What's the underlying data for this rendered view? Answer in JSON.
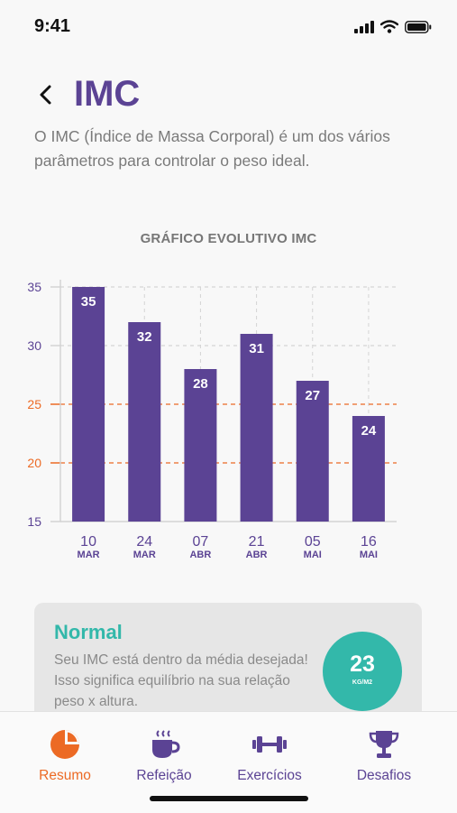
{
  "status_bar": {
    "time": "9:41"
  },
  "header": {
    "title": "IMC",
    "description": "O IMC (Índice de Massa Corporal) é um dos vários parâmetros para controlar o peso ideal."
  },
  "chart_data": {
    "type": "bar",
    "title": "GRÁFICO EVOLUTIVO IMC",
    "categories": [
      {
        "day": "10",
        "month": "MAR"
      },
      {
        "day": "24",
        "month": "MAR"
      },
      {
        "day": "07",
        "month": "ABR"
      },
      {
        "day": "21",
        "month": "ABR"
      },
      {
        "day": "05",
        "month": "MAI"
      },
      {
        "day": "16",
        "month": "MAI"
      }
    ],
    "values": [
      35,
      32,
      28,
      31,
      27,
      24
    ],
    "data_labels": [
      "35",
      "32",
      "28",
      "31",
      "27",
      "24"
    ],
    "ylim": [
      15,
      35
    ],
    "yticks": [
      15,
      20,
      25,
      30,
      35
    ],
    "yticklabels": [
      "15",
      "20",
      "25",
      "30",
      "35"
    ],
    "reference_lines": [
      20,
      25
    ],
    "grid": true,
    "colors": {
      "bar": "#5b4394",
      "reference": "#ec6a24",
      "axis_label": "#5b4394",
      "grid": "#d4d4d4"
    }
  },
  "result_card": {
    "title": "Normal",
    "text": "Seu IMC está dentro da média desejada! Isso significa equilíbrio na sua relação peso x altura.",
    "value": "23",
    "unit": "KG/M2"
  },
  "tabs": [
    {
      "label": "Resumo",
      "icon": "pie-chart-icon",
      "active": true
    },
    {
      "label": "Refeição",
      "icon": "coffee-cup-icon",
      "active": false
    },
    {
      "label": "Exercícios",
      "icon": "dumbbell-icon",
      "active": false
    },
    {
      "label": "Desafios",
      "icon": "trophy-icon",
      "active": false
    }
  ],
  "colors": {
    "primary": "#5b4394",
    "accent": "#ec6a24",
    "teal": "#33b8aa"
  }
}
